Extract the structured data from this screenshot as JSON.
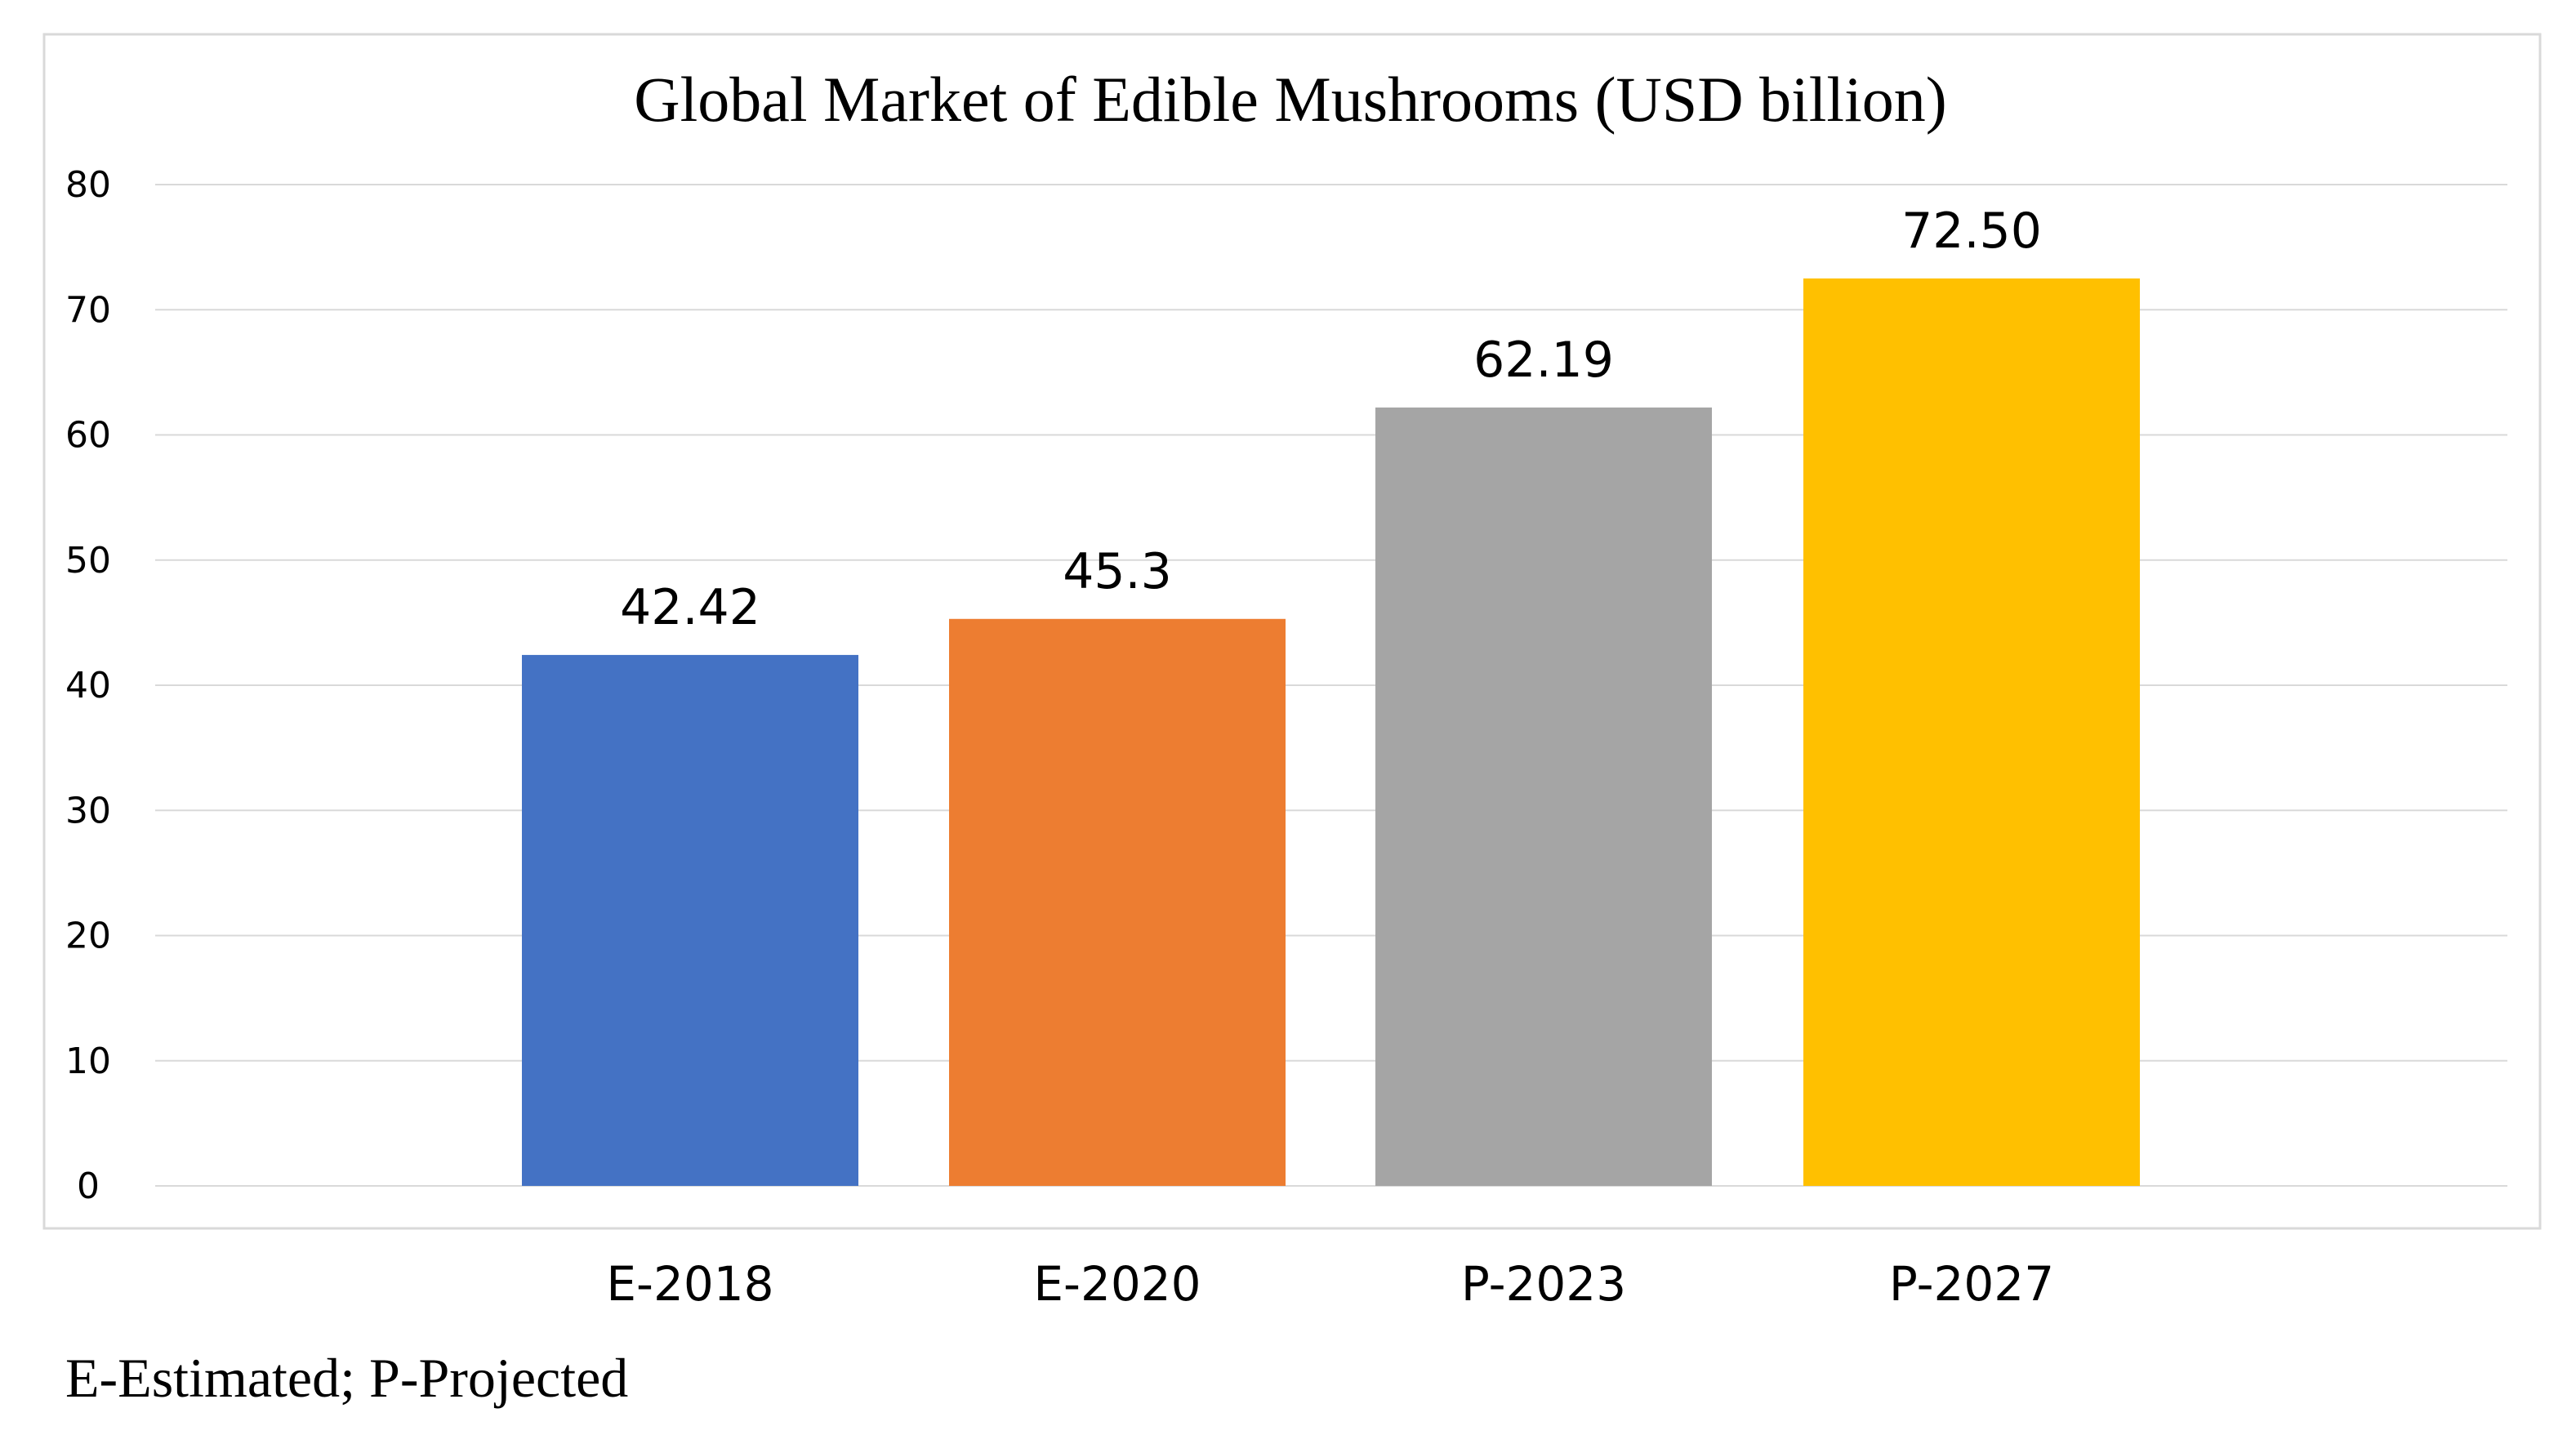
{
  "chart_data": {
    "type": "bar",
    "title": "Global Market of Edible Mushrooms (USD billion)",
    "categories": [
      "E-2018",
      "E-2020",
      "P-2023",
      "P-2027"
    ],
    "values": [
      42.42,
      45.3,
      62.19,
      72.5
    ],
    "data_labels": [
      "42.42",
      "45.3",
      "62.19",
      "72.50"
    ],
    "colors": [
      "#4472C4",
      "#ED7D31",
      "#A5A5A5",
      "#FFC000"
    ],
    "xlabel": "",
    "ylabel": "",
    "ylim": [
      0,
      80
    ],
    "yticks": [
      0,
      10,
      20,
      30,
      40,
      50,
      60,
      70,
      80
    ],
    "grid": true,
    "legend": "none"
  },
  "footnote": "E-Estimated; P-Projected"
}
